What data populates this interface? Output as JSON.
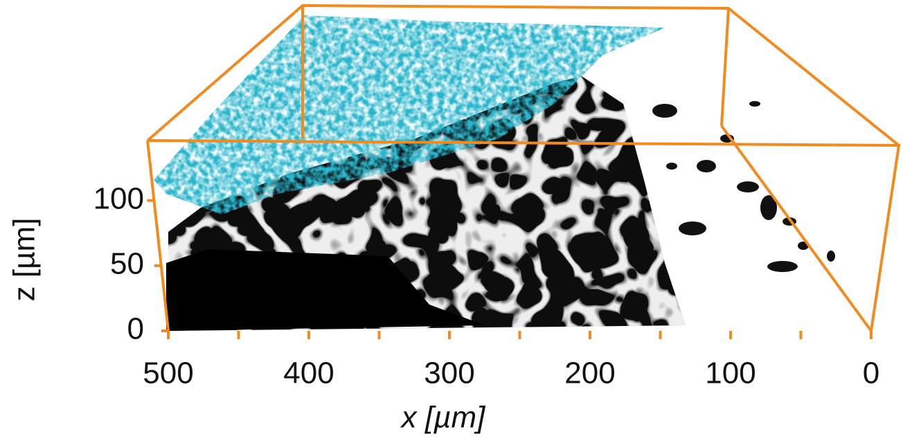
{
  "chart_data": {
    "type": "volume-render",
    "xlabel": "x [µm]",
    "ylabel": "z [µm]",
    "xlim": [
      500,
      0
    ],
    "xticks": [
      500,
      400,
      300,
      200,
      100,
      0
    ],
    "xminor_ticks": [
      450,
      350,
      250,
      150,
      50
    ],
    "ylim": [
      0,
      146
    ],
    "yticks": [
      0,
      50,
      100
    ],
    "color": "#f28a1e"
  }
}
